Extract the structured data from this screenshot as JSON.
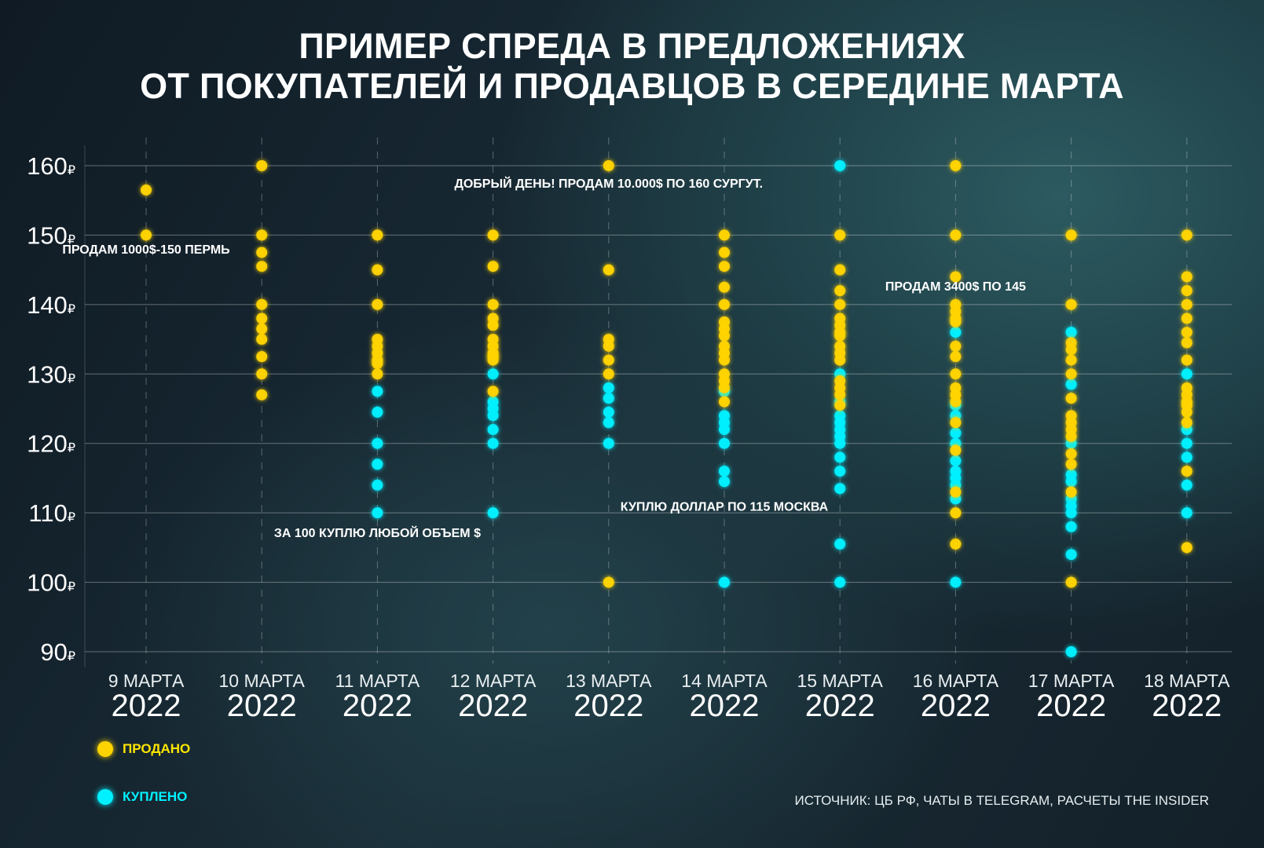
{
  "title_lines": [
    "ПРИМЕР СПРЕДА В ПРЕДЛОЖЕНИЯХ",
    "ОТ ПОКУПАТЕЛЕЙ И ПРОДАВЦОВ В СЕРЕДИНЕ МАРТА"
  ],
  "legend": {
    "sold": "ПРОДАНО",
    "bought": "КУПЛЕНО"
  },
  "source": "ИСТОЧНИК: ЦБ РФ, ЧАТЫ В TELEGRAM, РАСЧЕТЫ THE INSIDER",
  "colors": {
    "sold": "#ffd400",
    "bought": "#00f0ff"
  },
  "chart_data": {
    "type": "scatter",
    "ylim": [
      90,
      160
    ],
    "yticks": [
      160,
      150,
      140,
      130,
      120,
      110,
      100,
      90
    ],
    "ytick_suffix": "₽",
    "grid": true,
    "legend_placement": "bottom-left",
    "categories": [
      {
        "day": "9 МАРТА",
        "year": "2022"
      },
      {
        "day": "10 МАРТА",
        "year": "2022"
      },
      {
        "day": "11 МАРТА",
        "year": "2022"
      },
      {
        "day": "12 МАРТА",
        "year": "2022"
      },
      {
        "day": "13 МАРТА",
        "year": "2022"
      },
      {
        "day": "14 МАРТА",
        "year": "2022"
      },
      {
        "day": "15 МАРТА",
        "year": "2022"
      },
      {
        "day": "16 МАРТА",
        "year": "2022"
      },
      {
        "day": "17 МАРТА",
        "year": "2022"
      },
      {
        "day": "18 МАРТА",
        "year": "2022"
      }
    ],
    "series": [
      {
        "name": "ПРОДАНО",
        "values": [
          [
            156.5,
            150
          ],
          [
            160,
            150,
            147.5,
            145.5,
            140,
            138,
            136.5,
            135,
            132.5,
            130,
            127
          ],
          [
            150,
            145,
            140,
            135,
            134,
            133,
            132,
            131.5,
            130
          ],
          [
            150,
            145.5,
            140,
            138,
            137,
            135,
            134,
            133,
            132.5,
            132,
            127.5
          ],
          [
            160,
            145,
            135,
            134,
            132,
            130,
            100
          ],
          [
            150,
            147.5,
            145.5,
            142.5,
            140,
            137.5,
            136.5,
            135.5,
            134,
            133,
            132,
            130,
            129,
            128,
            126
          ],
          [
            150,
            145,
            142,
            140,
            138,
            137,
            136,
            135.5,
            134,
            133,
            132,
            129,
            128,
            127,
            125.5
          ],
          [
            160,
            150,
            144,
            140,
            139,
            138,
            137.5,
            134,
            132.5,
            130,
            128,
            127,
            126,
            123,
            119,
            113,
            110,
            105.5
          ],
          [
            150,
            140,
            134.5,
            133.5,
            132,
            130,
            126.5,
            124,
            123,
            122,
            121,
            118.5,
            117,
            113,
            100
          ],
          [
            150,
            144,
            142,
            140,
            138,
            136,
            134.5,
            132,
            128,
            127,
            126,
            125.5,
            124.5,
            123,
            116,
            105
          ]
        ]
      },
      {
        "name": "КУПЛЕНО",
        "values": [
          [],
          [],
          [
            127.5,
            124.5,
            120,
            117,
            114,
            110
          ],
          [
            130,
            126,
            125,
            124,
            122,
            120,
            110
          ],
          [
            128,
            126.5,
            124.5,
            123,
            120
          ],
          [
            127.5,
            124,
            123,
            122,
            120,
            116,
            114.5,
            100
          ],
          [
            160,
            130,
            126,
            124,
            123,
            122,
            121,
            120,
            118,
            116,
            113.5,
            105.5,
            100
          ],
          [
            136,
            125.5,
            124,
            121.5,
            120,
            117.5,
            116,
            115,
            114,
            112,
            100
          ],
          [
            136,
            128.5,
            120,
            115.5,
            114.5,
            112,
            111,
            110,
            108,
            104,
            90
          ],
          [
            130,
            122,
            120,
            118,
            114,
            110
          ]
        ]
      }
    ],
    "annotations": [
      {
        "text": "ПРОДАМ 1000$-150 ПЕРМЬ",
        "category": 0,
        "value": 148
      },
      {
        "text": "ДОБРЫЙ ДЕНЬ! ПРОДАМ 10.000$ ПО 160 СУРГУТ.",
        "category": 4,
        "value": 157.5
      },
      {
        "text": "ПРОДАМ 3400$ ПО 145",
        "category": 7,
        "value": 142.7
      },
      {
        "text": "КУПЛЮ ДОЛЛАР ПО 115 МОСКВА",
        "category": 5,
        "value": 111
      },
      {
        "text": "ЗА 100 КУПЛЮ ЛЮБОЙ ОБЪЕМ $",
        "category": 2,
        "value": 107.2
      }
    ]
  }
}
